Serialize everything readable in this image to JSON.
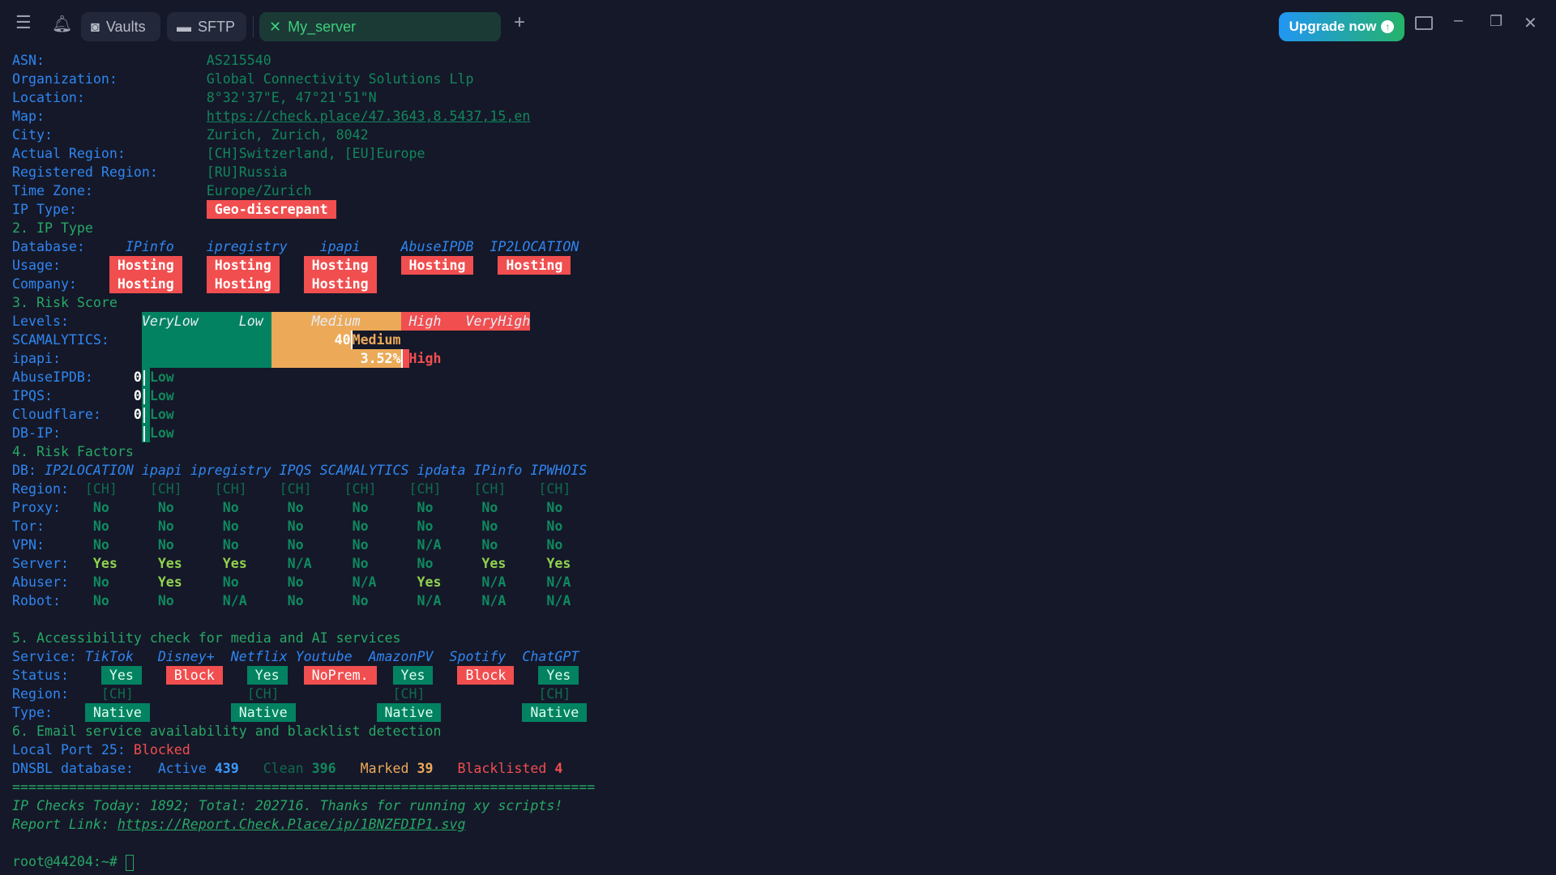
{
  "titlebar": {
    "vaults": "Vaults",
    "sftp": "SFTP",
    "active_tab": "My_server",
    "upgrade": "Upgrade now",
    "colors": {
      "accent_start": "#2196f3",
      "accent_end": "#25b36a",
      "active_tab_bg": "#1b3a36"
    }
  },
  "info": {
    "asn": {
      "label": "ASN:",
      "value": "AS215540"
    },
    "org": {
      "label": "Organization:",
      "value": "Global Connectivity Solutions Llp"
    },
    "location": {
      "label": "Location:",
      "value": "8°32'37\"E, 47°21'51\"N"
    },
    "map": {
      "label": "Map:",
      "value": "https://check.place/47.3643,8.5437,15,en"
    },
    "city": {
      "label": "City:",
      "value": "Zurich, Zurich, 8042"
    },
    "actual_region": {
      "label": "Actual Region:",
      "value": "[CH]Switzerland, [EU]Europe"
    },
    "registered_region": {
      "label": "Registered Region:",
      "value": "[RU]Russia"
    },
    "timezone": {
      "label": "Time Zone:",
      "value": "Europe/Zurich"
    },
    "ip_type": {
      "label": "IP Type:",
      "value": "Geo-discrepant"
    }
  },
  "ip_type": {
    "title": "2. IP Type",
    "db_label": "Database:",
    "usage_label": "Usage:",
    "company_label": "Company:",
    "databases": [
      "IPinfo",
      "ipregistry",
      "ipapi",
      "AbuseIPDB",
      "IP2LOCATION"
    ],
    "usage": [
      "Hosting",
      "Hosting",
      "Hosting",
      "Hosting",
      "Hosting"
    ],
    "company": [
      "Hosting",
      "Hosting",
      "Hosting"
    ]
  },
  "risk": {
    "title": "3. Risk Score",
    "levels_label": "Levels:",
    "levels": [
      "VeryLow",
      "Low",
      "Medium",
      "High",
      "VeryHigh"
    ],
    "rows": [
      {
        "label": "SCAMALYTICS:",
        "score": "40",
        "level": "Medium"
      },
      {
        "label": "ipapi:",
        "score": "3.52%",
        "level": "High"
      },
      {
        "label": "AbuseIPDB:",
        "score": "0",
        "level": "Low"
      },
      {
        "label": "IPQS:",
        "score": "0",
        "level": "Low"
      },
      {
        "label": "Cloudflare:",
        "score": "0",
        "level": "Low"
      },
      {
        "label": "DB-IP:",
        "score": "",
        "level": "Low"
      }
    ]
  },
  "factors": {
    "title": "4. Risk Factors",
    "db_label": "DB:",
    "dbs": [
      "IP2LOCATION",
      "ipapi",
      "ipregistry",
      "IPQS",
      "SCAMALYTICS",
      "ipdata",
      "IPinfo",
      "IPWHOIS"
    ],
    "rows": [
      {
        "label": "Region:",
        "values": [
          "[CH]",
          "[CH]",
          "[CH]",
          "[CH]",
          "[CH]",
          "[CH]",
          "[CH]",
          "[CH]"
        ]
      },
      {
        "label": "Proxy:",
        "values": [
          "No",
          "No",
          "No",
          "No",
          "No",
          "No",
          "No",
          "No"
        ]
      },
      {
        "label": "Tor:",
        "values": [
          "No",
          "No",
          "No",
          "No",
          "No",
          "No",
          "No",
          "No"
        ]
      },
      {
        "label": "VPN:",
        "values": [
          "No",
          "No",
          "No",
          "No",
          "No",
          "N/A",
          "No",
          "No"
        ]
      },
      {
        "label": "Server:",
        "values": [
          "Yes",
          "Yes",
          "Yes",
          "N/A",
          "No",
          "No",
          "Yes",
          "Yes"
        ]
      },
      {
        "label": "Abuser:",
        "values": [
          "No",
          "Yes",
          "No",
          "No",
          "N/A",
          "Yes",
          "N/A",
          "N/A"
        ]
      },
      {
        "label": "Robot:",
        "values": [
          "No",
          "No",
          "N/A",
          "No",
          "No",
          "N/A",
          "N/A",
          "N/A"
        ]
      }
    ]
  },
  "services": {
    "title": "5. Accessibility check for media and AI services",
    "service_label": "Service:",
    "status_label": "Status:",
    "region_label": "Region:",
    "type_label": "Type:",
    "names": [
      "TikTok",
      "Disney+",
      "Netflix",
      "Youtube",
      "AmazonPV",
      "Spotify",
      "ChatGPT"
    ],
    "status": [
      "Yes",
      "Block",
      "Yes",
      "NoPrem.",
      "Yes",
      "Block",
      "Yes"
    ],
    "regions": [
      "[CH]",
      "[CH]",
      "[CH]",
      "[CH]"
    ],
    "types": [
      "Native",
      "Native",
      "Native",
      "Native"
    ]
  },
  "email": {
    "title": "6. Email service availability and blacklist detection",
    "port_label": "Local Port 25:",
    "port_value": "Blocked",
    "dnsbl_label": "DNSBL database:",
    "active_label": "Active",
    "active": "439",
    "clean_label": "Clean",
    "clean": "396",
    "marked_label": "Marked",
    "marked": "39",
    "blacklisted_label": "Blacklisted",
    "blacklisted": "4"
  },
  "footer": {
    "separator": "========================================================================",
    "checks": "IP Checks Today: 1892; Total: 202716. Thanks for running xy scripts!",
    "report_label": "Report Link: ",
    "report_url": "https://Report.Check.Place/ip/1BNZFDIP1.svg",
    "prompt": "root@44204:~# "
  }
}
